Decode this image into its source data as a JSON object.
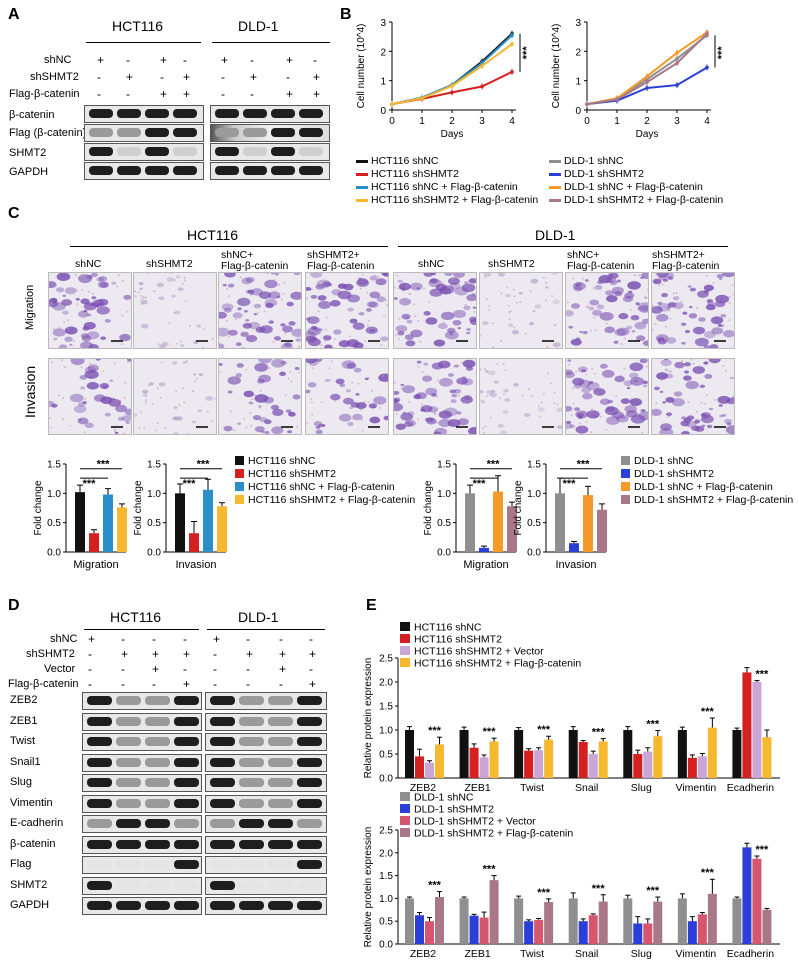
{
  "panels": {
    "a": "A",
    "b": "B",
    "c": "C",
    "d": "D",
    "e": "E"
  },
  "colors": {
    "black": "#111111",
    "red": "#d42020",
    "blue": "#2a8fc8",
    "yellow": "#f5b82e",
    "gray": "#8f8f8f",
    "dblue": "#2a3fd8",
    "orange": "#f59a2a",
    "mauve": "#a87888",
    "lav": "#c9a6d6",
    "pink": "#d6566e",
    "crystal": "#7a4fb3"
  },
  "panelA": {
    "groups": [
      "HCT116",
      "DLD-1"
    ],
    "row_labels": [
      "shNC",
      "shSHMT2",
      "Flag-β-catenin"
    ],
    "signs": [
      [
        "+",
        "-",
        "+",
        "-"
      ],
      [
        "-",
        "+",
        "-",
        "+"
      ],
      [
        "-",
        "-",
        "+",
        "+"
      ]
    ],
    "blots": [
      "β-catenin",
      "Flag (β-catenin)",
      "SHMT2",
      "GAPDH"
    ]
  },
  "panelC": {
    "groups": [
      "HCT116",
      "DLD-1"
    ],
    "cols": [
      "shNC",
      "shSHMT2",
      "shNC+\nFlag-β-catenin",
      "shSHMT2+\nFlag-β-catenin",
      "shNC",
      "shSHMT2",
      "shNC+\nFlag-β-catenin",
      "shSHMT2+\nFlag-β-catenin"
    ],
    "rows": [
      "Migration",
      "Invasion"
    ]
  },
  "panelD": {
    "groups": [
      "HCT116",
      "DLD-1"
    ],
    "row_labels": [
      "shNC",
      "shSHMT2",
      "Vector",
      "Flag-β-catenin"
    ],
    "signs": [
      [
        "+",
        "-",
        "-",
        "-"
      ],
      [
        "-",
        "+",
        "+",
        "+"
      ],
      [
        "-",
        "-",
        "+",
        "-"
      ],
      [
        "-",
        "-",
        "-",
        "+"
      ]
    ],
    "blots": [
      "ZEB2",
      "ZEB1",
      "Twist",
      "Snail1",
      "Slug",
      "Vimentin",
      "E-cadherin",
      "β-catenin",
      "Flag",
      "SHMT2",
      "GAPDH"
    ]
  },
  "chart_data": [
    {
      "type": "line",
      "id": "B1",
      "xlabel": "Days",
      "ylabel": "Cell number (10^4)",
      "xlim": [
        0,
        4
      ],
      "ylim": [
        0,
        3
      ],
      "xticks": [
        0,
        1,
        2,
        3,
        4
      ],
      "yticks": [
        0,
        1,
        2,
        3
      ],
      "annotation": "***",
      "series": [
        {
          "name": "HCT116 shNC",
          "color": "#111111",
          "values": [
            0.2,
            0.42,
            0.85,
            1.65,
            2.6
          ]
        },
        {
          "name": "HCT116 shSHMT2",
          "color": "#d42020",
          "values": [
            0.2,
            0.38,
            0.6,
            0.8,
            1.3
          ]
        },
        {
          "name": "HCT116 shNC + Flag-β-catenin",
          "color": "#2a8fc8",
          "values": [
            0.2,
            0.42,
            0.85,
            1.6,
            2.55
          ]
        },
        {
          "name": "HCT116 shSHMT2 + Flag-β-catenin",
          "color": "#f5b82e",
          "values": [
            0.2,
            0.4,
            0.82,
            1.5,
            2.25
          ]
        }
      ]
    },
    {
      "type": "line",
      "id": "B2",
      "xlabel": "Days",
      "ylabel": "Cell number (10^4)",
      "xlim": [
        0,
        4
      ],
      "ylim": [
        0,
        3
      ],
      "xticks": [
        0,
        1,
        2,
        3,
        4
      ],
      "yticks": [
        0,
        1,
        2,
        3
      ],
      "annotation": "***",
      "series": [
        {
          "name": "DLD-1 shNC",
          "color": "#8f8f8f",
          "values": [
            0.2,
            0.38,
            1.05,
            1.75,
            2.55
          ]
        },
        {
          "name": "DLD-1 shSHMT2",
          "color": "#2a3fd8",
          "values": [
            0.2,
            0.32,
            0.75,
            0.85,
            1.45
          ]
        },
        {
          "name": "DLD-1 shNC + Flag-β-catenin",
          "color": "#f59a2a",
          "values": [
            0.2,
            0.4,
            1.15,
            1.95,
            2.65
          ]
        },
        {
          "name": "DLD-1 shSHMT2 + Flag-β-catenin",
          "color": "#a87888",
          "values": [
            0.2,
            0.36,
            0.95,
            1.6,
            2.6
          ]
        }
      ]
    },
    {
      "type": "bar",
      "id": "C1",
      "xlabel": "Migration",
      "ylabel": "Fold change",
      "ylim": [
        0,
        1.5
      ],
      "yticks": [
        "0.0",
        "0.5",
        "1.0",
        "1.5"
      ],
      "colors": [
        "#111111",
        "#d42020",
        "#2a8fc8",
        "#f5b82e"
      ],
      "values": [
        1.02,
        0.32,
        0.98,
        0.76
      ],
      "err": [
        0.12,
        0.06,
        0.1,
        0.06
      ],
      "sig": [
        "***",
        "***"
      ]
    },
    {
      "type": "bar",
      "id": "C2",
      "xlabel": "Invasion",
      "ylabel": "Fold change",
      "ylim": [
        0,
        1.5
      ],
      "yticks": [
        "0.0",
        "0.5",
        "1.0",
        "1.5"
      ],
      "colors": [
        "#111111",
        "#d42020",
        "#2a8fc8",
        "#f5b82e"
      ],
      "values": [
        1.0,
        0.32,
        1.06,
        0.78
      ],
      "err": [
        0.16,
        0.2,
        0.18,
        0.06
      ],
      "sig": [
        "***",
        "***"
      ]
    },
    {
      "type": "bar",
      "id": "C3",
      "xlabel": "Migration",
      "ylabel": "Fold change",
      "ylim": [
        0,
        1.5
      ],
      "yticks": [
        "0.0",
        "0.5",
        "1.0",
        "1.5"
      ],
      "colors": [
        "#8f8f8f",
        "#2a3fd8",
        "#f59a2a",
        "#a87888"
      ],
      "values": [
        1.0,
        0.07,
        1.03,
        0.78
      ],
      "err": [
        0.14,
        0.03,
        0.27,
        0.07
      ],
      "sig": [
        "***",
        "***"
      ]
    },
    {
      "type": "bar",
      "id": "C4",
      "xlabel": "Invasion",
      "ylabel": "Fold change",
      "ylim": [
        0,
        1.5
      ],
      "yticks": [
        "0.0",
        "0.5",
        "1.0",
        "1.5"
      ],
      "colors": [
        "#8f8f8f",
        "#2a3fd8",
        "#f59a2a",
        "#a87888"
      ],
      "values": [
        1.0,
        0.15,
        0.97,
        0.72
      ],
      "err": [
        0.26,
        0.03,
        0.15,
        0.1
      ],
      "sig": [
        "***",
        "***"
      ]
    },
    {
      "type": "bar",
      "id": "E1",
      "ylabel": "Relative protein expression",
      "ylim": [
        0,
        2.5
      ],
      "yticks": [
        "0.0",
        "0.5",
        "1.0",
        "1.5",
        "2.0",
        "2.5"
      ],
      "categories": [
        "ZEB2",
        "ZEB1",
        "Twist",
        "Snail",
        "Slug",
        "Vimentin",
        "Ecadherin"
      ],
      "series": [
        {
          "name": "HCT116 shNC",
          "color": "#111111",
          "values": [
            1.0,
            1.0,
            1.0,
            1.0,
            1.0,
            1.0,
            1.0
          ],
          "err": [
            0.07,
            0.06,
            0.05,
            0.07,
            0.07,
            0.06,
            0.04
          ]
        },
        {
          "name": "HCT116 shSHMT2",
          "color": "#d42020",
          "values": [
            0.45,
            0.63,
            0.57,
            0.75,
            0.5,
            0.42,
            2.2
          ],
          "err": [
            0.15,
            0.08,
            0.04,
            0.03,
            0.08,
            0.06,
            0.1
          ]
        },
        {
          "name": "HCT116 shSHMT2 + Vector",
          "color": "#c9a6d6",
          "values": [
            0.32,
            0.43,
            0.58,
            0.5,
            0.55,
            0.45,
            2.0
          ],
          "err": [
            0.04,
            0.05,
            0.05,
            0.06,
            0.08,
            0.06,
            0.03
          ]
        },
        {
          "name": "HCT116 shSHMT2 + Flag-β-catenin",
          "color": "#f5b82e",
          "values": [
            0.7,
            0.76,
            0.8,
            0.76,
            0.87,
            1.05,
            0.85
          ],
          "err": [
            0.15,
            0.07,
            0.07,
            0.06,
            0.12,
            0.2,
            0.15
          ]
        }
      ],
      "sig": [
        "***",
        "***",
        "***",
        "***",
        "***",
        "***",
        "***"
      ]
    },
    {
      "type": "bar",
      "id": "E2",
      "ylabel": "Relative protein expression",
      "ylim": [
        0,
        2.5
      ],
      "yticks": [
        "0.0",
        "0.5",
        "1.0",
        "1.5",
        "2.0",
        "2.5"
      ],
      "categories": [
        "ZEB2",
        "ZEB1",
        "Twist",
        "Snail",
        "Slug",
        "Vimentin",
        "Ecadherin"
      ],
      "series": [
        {
          "name": "DLD-1 shNC",
          "color": "#8f8f8f",
          "values": [
            1.0,
            1.0,
            1.0,
            1.0,
            1.0,
            1.0,
            1.0
          ],
          "err": [
            0.03,
            0.03,
            0.05,
            0.12,
            0.07,
            0.1,
            0.03
          ]
        },
        {
          "name": "DLD-1 shSHMT2",
          "color": "#2a3fd8",
          "values": [
            0.63,
            0.62,
            0.5,
            0.5,
            0.45,
            0.5,
            2.12
          ],
          "err": [
            0.06,
            0.03,
            0.03,
            0.05,
            0.15,
            0.1,
            0.09
          ]
        },
        {
          "name": "DLD-1 shSHMT2 + Vector",
          "color": "#d6566e",
          "values": [
            0.5,
            0.58,
            0.53,
            0.63,
            0.45,
            0.65,
            1.87
          ],
          "err": [
            0.08,
            0.12,
            0.03,
            0.03,
            0.1,
            0.04,
            0.06
          ]
        },
        {
          "name": "DLD-1 shSHMT2 + Flag-β-catenin",
          "color": "#a87888",
          "values": [
            1.03,
            1.4,
            0.92,
            0.93,
            0.93,
            1.1,
            0.75
          ],
          "err": [
            0.12,
            0.1,
            0.07,
            0.15,
            0.1,
            0.32,
            0.03
          ]
        }
      ],
      "sig": [
        "***",
        "***",
        "***",
        "***",
        "***",
        "***",
        "***"
      ]
    }
  ]
}
